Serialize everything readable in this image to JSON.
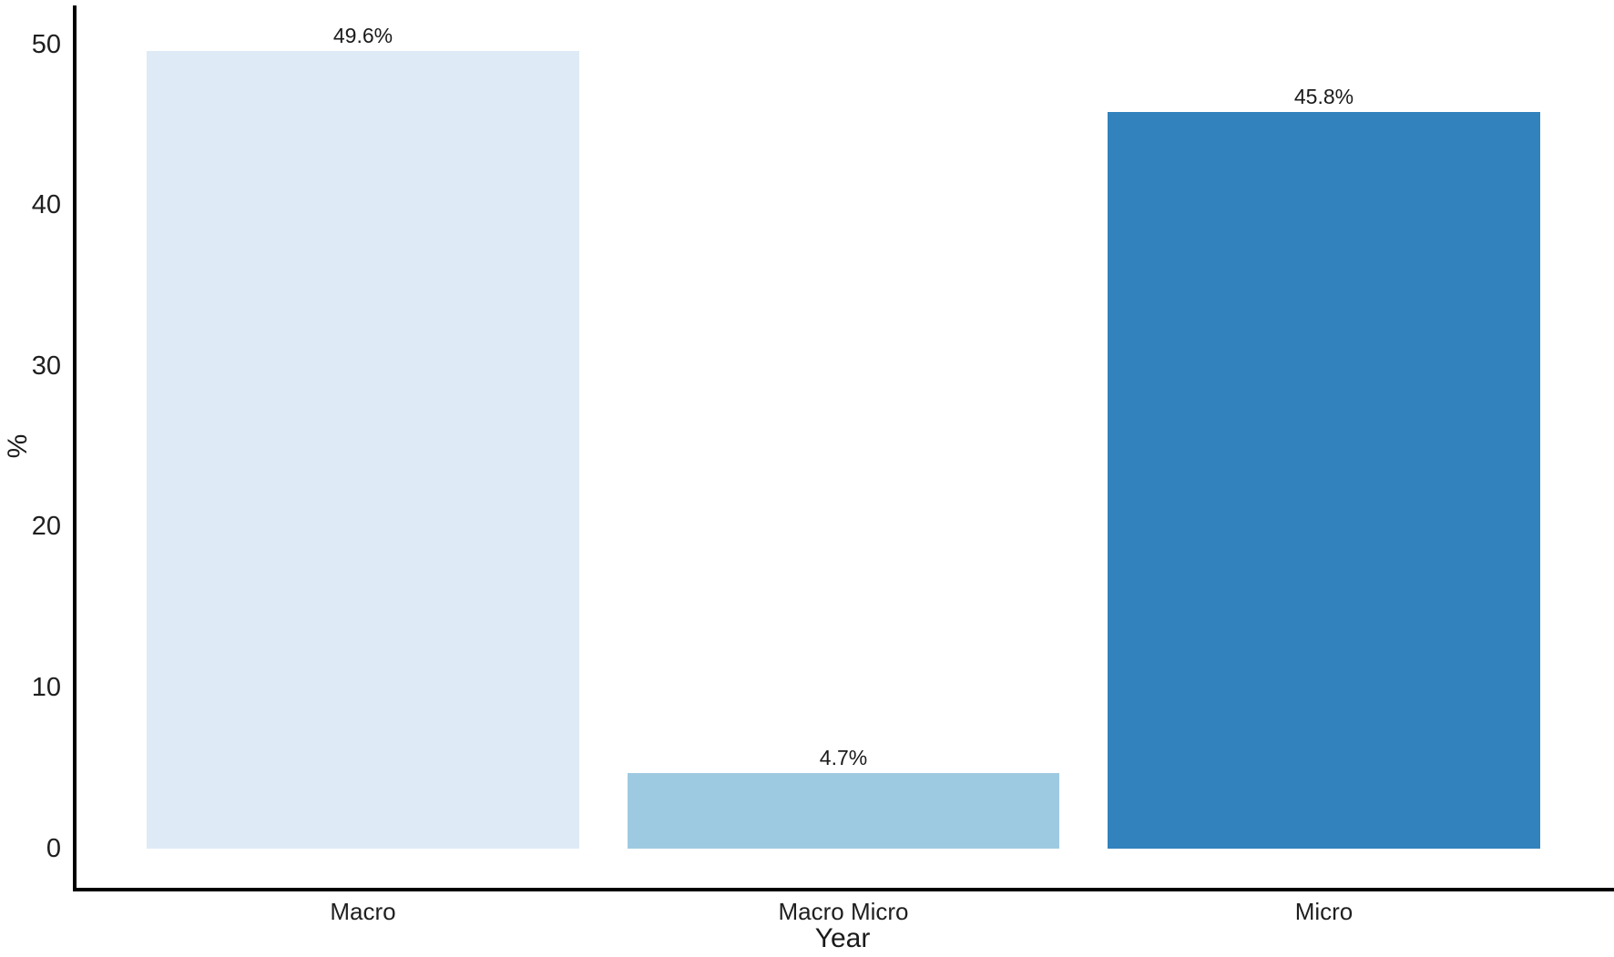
{
  "chart_data": {
    "type": "bar",
    "title": "",
    "xlabel": "Year",
    "ylabel": "%",
    "categories": [
      "Macro",
      "Macro Micro",
      "Micro"
    ],
    "values": [
      49.6,
      4.7,
      45.8
    ],
    "bar_labels": [
      "49.6%",
      "4.7%",
      "45.8%"
    ],
    "bar_colors": [
      "#DEEBF7",
      "#9ECAE1",
      "#3182BD"
    ],
    "y_ticks": [
      0,
      10,
      20,
      30,
      40,
      50
    ],
    "ylim": [
      0,
      52
    ],
    "grid": false,
    "legend": "none",
    "axis_color": "#000000",
    "text_color": "#1a1a1a",
    "background_color": "#ffffff"
  }
}
